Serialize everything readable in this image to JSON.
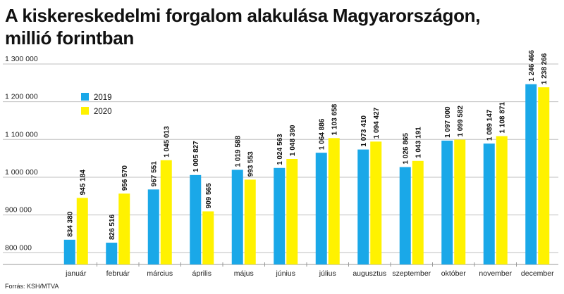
{
  "title_line1": "A kiskereskedelmi forgalom alakulása Magyarországon,",
  "title_line2": "millió forintban",
  "source": "Forrás: KSH/MTVA",
  "chart_data": {
    "type": "bar",
    "categories": [
      "január",
      "február",
      "március",
      "április",
      "május",
      "június",
      "július",
      "augusztus",
      "szeptember",
      "október",
      "november",
      "december"
    ],
    "series": [
      {
        "name": "2019",
        "color": "#1aa8e8",
        "values": [
          834380,
          826516,
          967551,
          1005827,
          1019588,
          1024563,
          1064886,
          1073410,
          1026865,
          1097000,
          1089147,
          1246466
        ],
        "labels": [
          "834 380",
          "826 516",
          "967 551",
          "1 005 827",
          "1 019 588",
          "1 024 563",
          "1 064 886",
          "1 073 410",
          "1 026 865",
          "1 097 000",
          "1 089 147",
          "1 246 466"
        ]
      },
      {
        "name": "2020",
        "color": "#fff200",
        "values": [
          945184,
          956570,
          1045013,
          909565,
          993553,
          1048390,
          1103658,
          1094427,
          1043191,
          1099582,
          1108871,
          1238266
        ],
        "labels": [
          "945 184",
          "956 570",
          "1 045 013",
          "909 565",
          "993 553",
          "1 048 390",
          "1 103 658",
          "1 094 427",
          "1 043 191",
          "1 099 582",
          "1 108 871",
          "1 238 266"
        ]
      }
    ],
    "yticks": [
      800000,
      900000,
      1000000,
      1100000,
      1200000,
      1300000
    ],
    "ytick_labels": [
      "800 000",
      "900 000",
      "1 000 000",
      "1 100 000",
      "1 200 000",
      "1 300 000"
    ],
    "ylim": [
      780000,
      1300000
    ],
    "legend": "top-left",
    "grid": true,
    "gridline_color": "#bfbfbf"
  }
}
